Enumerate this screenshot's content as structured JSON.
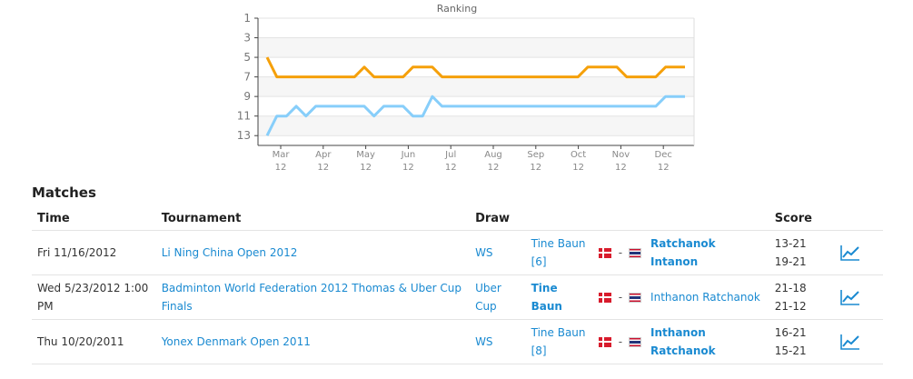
{
  "chart_data": {
    "type": "line",
    "title": "Ranking",
    "x_tick_labels": [
      [
        "Mar",
        "12"
      ],
      [
        "Apr",
        "12"
      ],
      [
        "May",
        "12"
      ],
      [
        "Jun",
        "12"
      ],
      [
        "Jul",
        "12"
      ],
      [
        "Aug",
        "12"
      ],
      [
        "Sep",
        "12"
      ],
      [
        "Oct",
        "12"
      ],
      [
        "Nov",
        "12"
      ],
      [
        "Dec",
        "12"
      ]
    ],
    "y_ticks": [
      1,
      3,
      5,
      7,
      9,
      11,
      13
    ],
    "ylim": [
      1,
      14
    ],
    "y_reversed": true,
    "grid": true,
    "series": [
      {
        "color": "#f5a00a",
        "values": [
          5,
          7,
          7,
          7,
          7,
          7,
          7,
          7,
          7,
          7,
          6,
          7,
          7,
          7,
          7,
          6,
          6,
          6,
          7,
          7,
          7,
          7,
          7,
          7,
          7,
          7,
          7,
          7,
          7,
          7,
          7,
          7,
          7,
          6,
          6,
          6,
          6,
          7,
          7,
          7,
          7,
          6,
          6,
          6
        ]
      },
      {
        "color": "#87cefa",
        "values": [
          13,
          11,
          11,
          10,
          11,
          10,
          10,
          10,
          10,
          10,
          10,
          11,
          10,
          10,
          10,
          11,
          11,
          9,
          10,
          10,
          10,
          10,
          10,
          10,
          10,
          10,
          10,
          10,
          10,
          10,
          10,
          10,
          10,
          10,
          10,
          10,
          10,
          10,
          10,
          10,
          10,
          9,
          9,
          9
        ]
      }
    ]
  },
  "matches": {
    "title": "Matches",
    "headers": {
      "time": "Time",
      "tournament": "Tournament",
      "draw": "Draw",
      "score": "Score"
    },
    "rows": [
      {
        "time": "Fri 11/16/2012",
        "tournament": "Li Ning China Open 2012",
        "draw": "WS",
        "player1": "Tine Baun",
        "player1_seed": "[6]",
        "separator": "-",
        "player2_line1": "Ratchanok",
        "player2_line2": "Intanon",
        "score1": "13-21",
        "score2": "19-21"
      },
      {
        "time": "Wed 5/23/2012 1:00 PM",
        "tournament": "Badminton World Federation 2012 Thomas & Uber Cup Finals",
        "draw": "Uber Cup",
        "player1": "Tine Baun",
        "separator": "-",
        "player2": "Inthanon Ratchanok",
        "score1": "21-18",
        "score2": "21-12"
      },
      {
        "time": "Thu 10/20/2011",
        "tournament": "Yonex Denmark Open 2011",
        "draw": "WS",
        "player1": "Tine Baun",
        "player1_seed": "[8]",
        "separator": "-",
        "player2_line1": "Inthanon",
        "player2_line2": "Ratchanok",
        "score1": "16-21",
        "score2": "15-21"
      }
    ],
    "icons": {
      "flag1": "denmark-flag-icon",
      "flag2": "thailand-flag-icon",
      "stats": "trend-chart-icon"
    }
  }
}
